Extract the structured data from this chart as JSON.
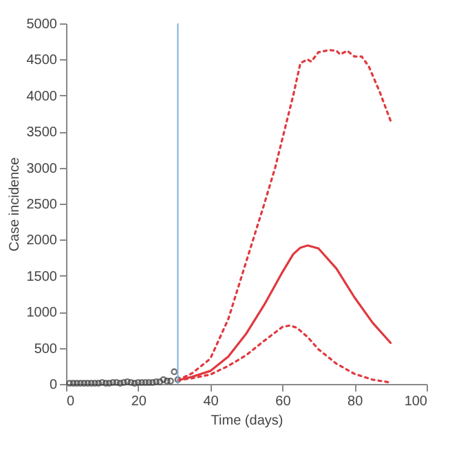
{
  "chart_data": {
    "type": "line",
    "xlabel": "Time (days)",
    "ylabel": "Case incidence",
    "xlim": [
      0,
      100
    ],
    "xticks": [
      0,
      20,
      40,
      60,
      80,
      100
    ],
    "ylim": [
      0,
      5000
    ],
    "yticks": [
      0,
      500,
      1000,
      1500,
      2000,
      2500,
      3000,
      3500,
      4000,
      4500,
      5000
    ],
    "grid": false,
    "ref_lines": [
      {
        "axis": "x",
        "value": 31,
        "color": "#7fb2d9"
      }
    ],
    "series": [
      {
        "type": "scatter",
        "color": "#3a3a3a",
        "marker": "circle",
        "x": [
          1,
          2,
          3,
          4,
          5,
          6,
          7,
          8,
          9,
          10,
          11,
          12,
          13,
          14,
          15,
          16,
          17,
          18,
          19,
          20,
          21,
          22,
          23,
          24,
          25,
          26,
          27,
          28,
          29,
          30,
          31
        ],
        "values": [
          10,
          10,
          10,
          10,
          10,
          10,
          10,
          10,
          10,
          20,
          10,
          10,
          20,
          20,
          10,
          20,
          30,
          20,
          10,
          20,
          20,
          20,
          20,
          20,
          30,
          30,
          60,
          40,
          40,
          170,
          60
        ]
      },
      {
        "color": "#e0393e",
        "line_style": "solid",
        "x": [
          31,
          35,
          40,
          45,
          50,
          55,
          60,
          63,
          65,
          67,
          70,
          75,
          80,
          85,
          90
        ],
        "values": [
          50,
          100,
          180,
          380,
          700,
          1100,
          1550,
          1800,
          1890,
          1920,
          1880,
          1600,
          1200,
          850,
          570
        ]
      },
      {
        "color": "#e0393e",
        "line_style": "dotted",
        "x": [
          31,
          35,
          40,
          45,
          50,
          55,
          58,
          60,
          63,
          65,
          67,
          68,
          70,
          73,
          75,
          76,
          78,
          80,
          82,
          84,
          87,
          90
        ],
        "values": [
          50,
          150,
          350,
          900,
          1700,
          2500,
          3000,
          3400,
          4000,
          4450,
          4500,
          4470,
          4600,
          4630,
          4620,
          4570,
          4620,
          4540,
          4540,
          4400,
          4050,
          3650
        ]
      },
      {
        "color": "#e0393e",
        "line_style": "dotted",
        "x": [
          31,
          35,
          40,
          45,
          50,
          55,
          60,
          62,
          64,
          67,
          70,
          75,
          80,
          85,
          90
        ],
        "values": [
          50,
          80,
          130,
          250,
          400,
          600,
          790,
          810,
          780,
          650,
          480,
          280,
          140,
          60,
          20
        ]
      }
    ]
  }
}
